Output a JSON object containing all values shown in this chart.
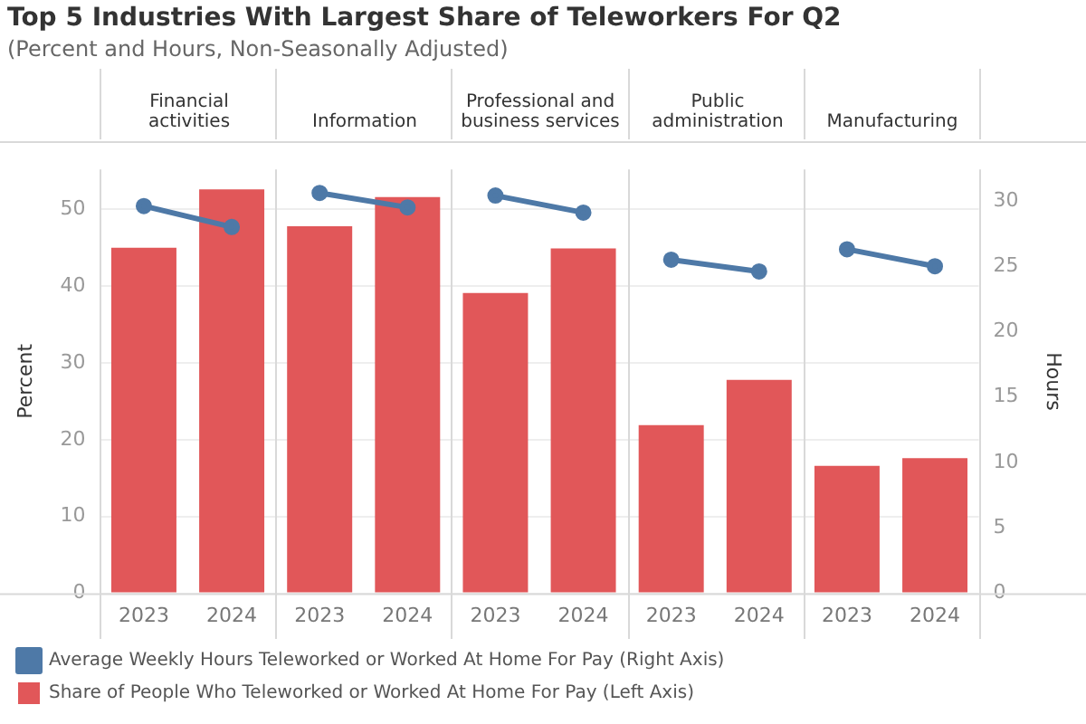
{
  "chart_data": {
    "type": "bar",
    "title": "Top 5 Industries With Largest Share of Teleworkers For Q2",
    "subtitle": "(Percent and Hours, Non-Seasonally Adjusted)",
    "categories": [
      "2023",
      "2024",
      "2023",
      "2024",
      "2023",
      "2024",
      "2023",
      "2024",
      "2023",
      "2024"
    ],
    "annotations": [
      "Financial activities",
      "Information",
      "Professional and business services",
      "Public administration",
      "Manufacturing"
    ],
    "series": [
      {
        "name": "Average Weekly Hours Teleworked or Worked At Home For Pay (Right Axis)",
        "type": "line",
        "axis": "y2",
        "color": "#4e79a7",
        "values": [
          29.6,
          28.0,
          30.6,
          29.5,
          30.4,
          29.1,
          25.5,
          24.6,
          26.3,
          25.0
        ]
      },
      {
        "name": "Share of People Who Teleworked or Worked At Home For Pay (Left Axis)",
        "color": "#e15759",
        "values": [
          45.0,
          52.6,
          47.8,
          51.6,
          39.1,
          44.9,
          21.9,
          27.8,
          16.6,
          17.6
        ]
      }
    ],
    "ylabel": "Percent",
    "y2label": "Hours",
    "ylim": [
      0,
      55.2
    ],
    "yticks": [
      0,
      10,
      20,
      30,
      40,
      50
    ],
    "y2lim": [
      0,
      32.4
    ],
    "y2ticks": [
      0,
      5,
      10,
      15,
      20,
      25,
      30
    ],
    "grid": "y",
    "legend": "bottom",
    "marker": "circle",
    "line_style": "solid"
  }
}
